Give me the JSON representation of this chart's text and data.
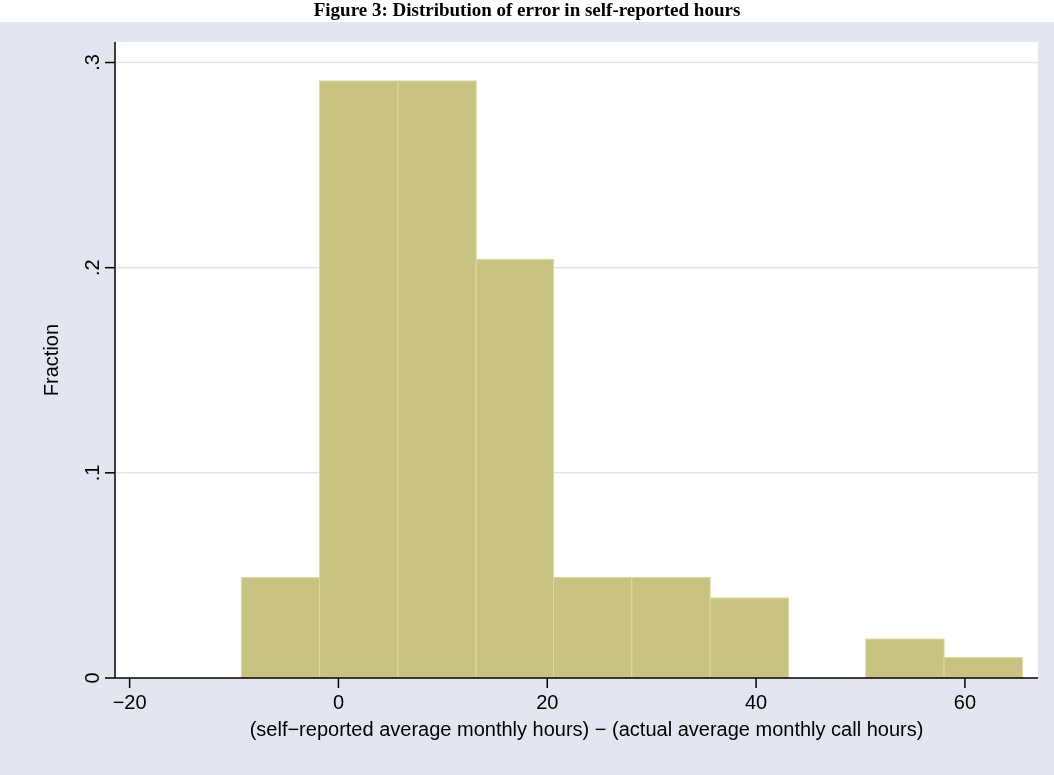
{
  "chart_data": {
    "type": "histogram",
    "title": "Figure 3: Distribution of error in self-reported hours",
    "xlabel": "(self−reported average monthly hours) − (actual average monthly call hours)",
    "ylabel": "Fraction",
    "bins": [
      -9.3,
      -1.8,
      5.7,
      13.2,
      20.6,
      28.1,
      35.6,
      43.1,
      50.5,
      58.0,
      65.5
    ],
    "values": [
      0.049,
      0.291,
      0.291,
      0.204,
      0.049,
      0.049,
      0.039,
      0,
      0.019,
      0.01
    ],
    "color": "#c9c382",
    "xlim": [
      -21.4,
      67
    ],
    "xticks": [
      {
        "value": -20,
        "label": "−20"
      },
      0,
      20,
      40,
      60
    ],
    "ylim": [
      0,
      0.31
    ],
    "yticks": [
      0,
      {
        "value": 0.1,
        "label": ".1"
      },
      {
        "value": 0.2,
        "label": ".2"
      },
      {
        "value": 0.3,
        "label": ".3"
      }
    ],
    "grid": "y"
  }
}
